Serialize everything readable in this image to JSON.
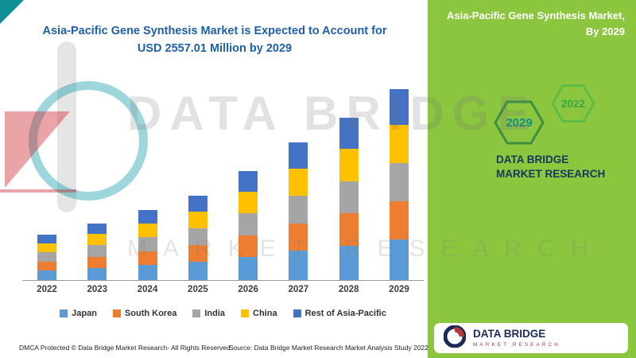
{
  "chart": {
    "title_line1": "Asia-Pacific Gene Synthesis Market is Expected to Account for",
    "title_line2": "USD 2557.01 Million by 2029"
  },
  "chart_data": {
    "type": "bar",
    "stacked": true,
    "title": "Asia-Pacific Gene Synthesis Market is Expected to Account for USD 2557.01 Million by 2029",
    "categories": [
      "2022",
      "2023",
      "2024",
      "2025",
      "2026",
      "2027",
      "2028",
      "2029"
    ],
    "series": [
      {
        "name": "Japan",
        "color": "#5B9BD5",
        "values": [
          130,
          160,
          200,
          240,
          310,
          390,
          460,
          545
        ]
      },
      {
        "name": "South Korea",
        "color": "#ED7D31",
        "values": [
          120,
          150,
          185,
          225,
          290,
          365,
          430,
          510
        ]
      },
      {
        "name": "India",
        "color": "#A5A5A5",
        "values": [
          125,
          155,
          190,
          230,
          295,
          370,
          435,
          515
        ]
      },
      {
        "name": "China",
        "color": "#FFC000",
        "values": [
          120,
          150,
          185,
          225,
          290,
          365,
          430,
          505
        ]
      },
      {
        "name": "Rest of Asia-Pacific",
        "color": "#4472C4",
        "values": [
          115,
          145,
          180,
          215,
          280,
          350,
          415,
          482
        ]
      }
    ],
    "totals": [
      610,
      760,
      940,
      1135,
      1465,
      1840,
      2170,
      2557.01
    ],
    "xlabel": "",
    "ylabel": "",
    "ylim": [
      0,
      2600
    ],
    "grid": false,
    "legend_position": "bottom"
  },
  "watermark": {
    "line1": "DATA BRIDGE",
    "line2": "MARKET RESEARCH"
  },
  "footer": {
    "dmca": "DMCA Protected © Data Bridge Market Research- All Rights Reserved.",
    "source": "Source: Data Bridge Market Research Market Analysis Study 2022"
  },
  "right_panel": {
    "title_line1": "Asia-Pacific Gene Synthesis Market,",
    "title_line2": "By 2029",
    "hexagons": [
      {
        "label": "2029"
      },
      {
        "label": "2022"
      }
    ],
    "brand_text": "DATA BRIDGE MARKET RESEARCH",
    "logo": {
      "name": "DATA BRIDGE",
      "subtitle": "MARKET RESEARCH"
    },
    "accent_green": "#8CC63F"
  }
}
